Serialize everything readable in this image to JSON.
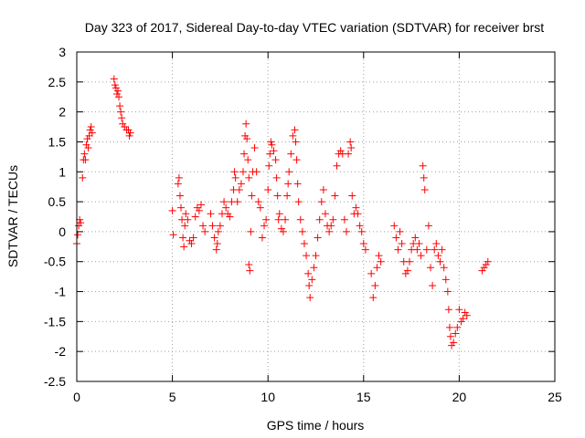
{
  "chart_data": {
    "type": "scatter",
    "title": "Day 323 of 2017, Sidereal Day-to-day VTEC variation (SDTVAR) for receiver brst",
    "xlabel": "GPS time / hours",
    "ylabel": "SDTVAR / TECUs",
    "xlim": [
      0,
      25
    ],
    "ylim": [
      -2.5,
      3
    ],
    "xticks": [
      0,
      5,
      10,
      15,
      20,
      25
    ],
    "yticks": [
      -2.5,
      -2,
      -1.5,
      -1,
      -0.5,
      0,
      0.5,
      1,
      1.5,
      2,
      2.5,
      3
    ],
    "grid": true,
    "marker": "+",
    "color": "#ff0000",
    "series": [
      {
        "name": "brst",
        "points": [
          [
            0.0,
            -0.2
          ],
          [
            0.05,
            -0.05
          ],
          [
            0.1,
            0.1
          ],
          [
            0.15,
            0.2
          ],
          [
            0.2,
            0.15
          ],
          [
            0.3,
            0.9
          ],
          [
            0.35,
            1.2
          ],
          [
            0.4,
            1.3
          ],
          [
            0.45,
            1.2
          ],
          [
            0.5,
            1.45
          ],
          [
            0.55,
            1.55
          ],
          [
            0.6,
            1.4
          ],
          [
            0.65,
            1.6
          ],
          [
            0.7,
            1.7
          ],
          [
            0.75,
            1.75
          ],
          [
            0.8,
            1.65
          ],
          [
            1.95,
            2.55
          ],
          [
            2.0,
            2.45
          ],
          [
            2.05,
            2.4
          ],
          [
            2.1,
            2.3
          ],
          [
            2.15,
            2.35
          ],
          [
            2.2,
            2.25
          ],
          [
            2.25,
            2.1
          ],
          [
            2.3,
            2.0
          ],
          [
            2.35,
            1.9
          ],
          [
            2.4,
            1.8
          ],
          [
            2.5,
            1.75
          ],
          [
            2.6,
            1.7
          ],
          [
            2.7,
            1.7
          ],
          [
            2.75,
            1.6
          ],
          [
            2.8,
            1.65
          ],
          [
            5.0,
            0.35
          ],
          [
            5.05,
            -0.05
          ],
          [
            5.3,
            0.8
          ],
          [
            5.35,
            0.9
          ],
          [
            5.4,
            0.6
          ],
          [
            5.45,
            0.4
          ],
          [
            5.5,
            0.2
          ],
          [
            5.55,
            -0.1
          ],
          [
            5.6,
            -0.25
          ],
          [
            5.65,
            0.1
          ],
          [
            5.7,
            0.3
          ],
          [
            5.8,
            0.2
          ],
          [
            5.9,
            -0.15
          ],
          [
            6.0,
            -0.2
          ],
          [
            6.1,
            -0.1
          ],
          [
            6.2,
            0.25
          ],
          [
            6.3,
            0.4
          ],
          [
            6.4,
            0.35
          ],
          [
            6.5,
            0.45
          ],
          [
            6.6,
            0.1
          ],
          [
            6.7,
            0.0
          ],
          [
            7.0,
            0.3
          ],
          [
            7.1,
            0.1
          ],
          [
            7.2,
            -0.1
          ],
          [
            7.3,
            -0.3
          ],
          [
            7.35,
            -0.2
          ],
          [
            7.4,
            0.0
          ],
          [
            7.5,
            0.1
          ],
          [
            7.6,
            0.3
          ],
          [
            7.7,
            0.5
          ],
          [
            7.8,
            0.4
          ],
          [
            7.9,
            0.3
          ],
          [
            8.0,
            0.25
          ],
          [
            8.1,
            0.5
          ],
          [
            8.2,
            0.7
          ],
          [
            8.25,
            1.0
          ],
          [
            8.3,
            0.9
          ],
          [
            8.4,
            0.5
          ],
          [
            8.5,
            0.7
          ],
          [
            8.6,
            0.8
          ],
          [
            8.7,
            1.0
          ],
          [
            8.75,
            1.3
          ],
          [
            8.8,
            1.6
          ],
          [
            8.85,
            1.8
          ],
          [
            8.9,
            1.55
          ],
          [
            8.95,
            1.2
          ],
          [
            9.0,
            0.9
          ],
          [
            9.0,
            -0.55
          ],
          [
            9.05,
            -0.65
          ],
          [
            9.1,
            0.0
          ],
          [
            9.15,
            0.6
          ],
          [
            9.2,
            1.0
          ],
          [
            9.3,
            1.4
          ],
          [
            9.4,
            1.0
          ],
          [
            9.5,
            0.5
          ],
          [
            9.6,
            0.4
          ],
          [
            9.7,
            -0.1
          ],
          [
            9.8,
            0.1
          ],
          [
            9.9,
            0.2
          ],
          [
            10.0,
            0.7
          ],
          [
            10.05,
            1.1
          ],
          [
            10.1,
            1.3
          ],
          [
            10.15,
            1.5
          ],
          [
            10.2,
            1.45
          ],
          [
            10.3,
            1.35
          ],
          [
            10.4,
            1.2
          ],
          [
            10.45,
            0.9
          ],
          [
            10.5,
            0.6
          ],
          [
            10.55,
            0.2
          ],
          [
            10.6,
            0.3
          ],
          [
            10.7,
            0.05
          ],
          [
            10.8,
            0.0
          ],
          [
            10.9,
            0.2
          ],
          [
            11.0,
            0.6
          ],
          [
            11.05,
            0.8
          ],
          [
            11.1,
            1.0
          ],
          [
            11.2,
            1.3
          ],
          [
            11.3,
            1.6
          ],
          [
            11.4,
            1.7
          ],
          [
            11.45,
            1.5
          ],
          [
            11.5,
            1.2
          ],
          [
            11.55,
            0.8
          ],
          [
            11.6,
            0.5
          ],
          [
            11.7,
            0.2
          ],
          [
            11.8,
            0.0
          ],
          [
            11.9,
            -0.2
          ],
          [
            12.0,
            -0.4
          ],
          [
            12.1,
            -0.7
          ],
          [
            12.15,
            -0.9
          ],
          [
            12.2,
            -1.1
          ],
          [
            12.3,
            -0.8
          ],
          [
            12.4,
            -0.6
          ],
          [
            12.5,
            -0.4
          ],
          [
            12.6,
            -0.1
          ],
          [
            12.7,
            0.2
          ],
          [
            12.8,
            0.5
          ],
          [
            12.9,
            0.7
          ],
          [
            13.0,
            0.3
          ],
          [
            13.1,
            0.1
          ],
          [
            13.2,
            0.0
          ],
          [
            13.3,
            0.1
          ],
          [
            13.4,
            0.2
          ],
          [
            13.5,
            0.6
          ],
          [
            13.6,
            1.1
          ],
          [
            13.7,
            1.3
          ],
          [
            13.8,
            1.35
          ],
          [
            13.9,
            1.3
          ],
          [
            14.0,
            0.2
          ],
          [
            14.1,
            0.0
          ],
          [
            14.2,
            1.3
          ],
          [
            14.3,
            1.5
          ],
          [
            14.35,
            1.4
          ],
          [
            14.4,
            0.6
          ],
          [
            14.5,
            0.3
          ],
          [
            14.6,
            0.4
          ],
          [
            14.7,
            0.3
          ],
          [
            14.8,
            0.1
          ],
          [
            14.9,
            0.0
          ],
          [
            15.0,
            -0.2
          ],
          [
            15.1,
            -0.3
          ],
          [
            15.4,
            -0.7
          ],
          [
            15.5,
            -1.1
          ],
          [
            15.6,
            -0.9
          ],
          [
            15.7,
            -0.6
          ],
          [
            15.8,
            -0.4
          ],
          [
            15.9,
            -0.5
          ],
          [
            16.6,
            0.1
          ],
          [
            16.7,
            -0.1
          ],
          [
            16.8,
            -0.3
          ],
          [
            16.9,
            0.0
          ],
          [
            17.0,
            -0.2
          ],
          [
            17.1,
            -0.5
          ],
          [
            17.2,
            -0.7
          ],
          [
            17.3,
            -0.65
          ],
          [
            17.4,
            -0.5
          ],
          [
            17.5,
            -0.3
          ],
          [
            17.6,
            -0.2
          ],
          [
            17.7,
            -0.1
          ],
          [
            17.8,
            -0.3
          ],
          [
            17.9,
            -0.2
          ],
          [
            18.0,
            -0.4
          ],
          [
            18.1,
            1.1
          ],
          [
            18.15,
            0.9
          ],
          [
            18.2,
            0.7
          ],
          [
            18.3,
            -0.3
          ],
          [
            18.4,
            0.1
          ],
          [
            18.5,
            -0.6
          ],
          [
            18.6,
            -0.9
          ],
          [
            18.7,
            -0.3
          ],
          [
            18.8,
            -0.2
          ],
          [
            18.9,
            -0.4
          ],
          [
            19.0,
            -0.5
          ],
          [
            19.1,
            -0.3
          ],
          [
            19.2,
            -0.6
          ],
          [
            19.3,
            -0.8
          ],
          [
            19.4,
            -1.0
          ],
          [
            19.45,
            -1.3
          ],
          [
            19.5,
            -1.6
          ],
          [
            19.55,
            -1.75
          ],
          [
            19.6,
            -1.9
          ],
          [
            19.7,
            -1.85
          ],
          [
            19.8,
            -1.7
          ],
          [
            19.9,
            -1.6
          ],
          [
            20.0,
            -1.3
          ],
          [
            20.1,
            -1.5
          ],
          [
            20.2,
            -1.45
          ],
          [
            20.3,
            -1.35
          ],
          [
            20.4,
            -1.4
          ],
          [
            21.2,
            -0.65
          ],
          [
            21.3,
            -0.6
          ],
          [
            21.4,
            -0.55
          ],
          [
            21.5,
            -0.5
          ]
        ]
      }
    ]
  }
}
